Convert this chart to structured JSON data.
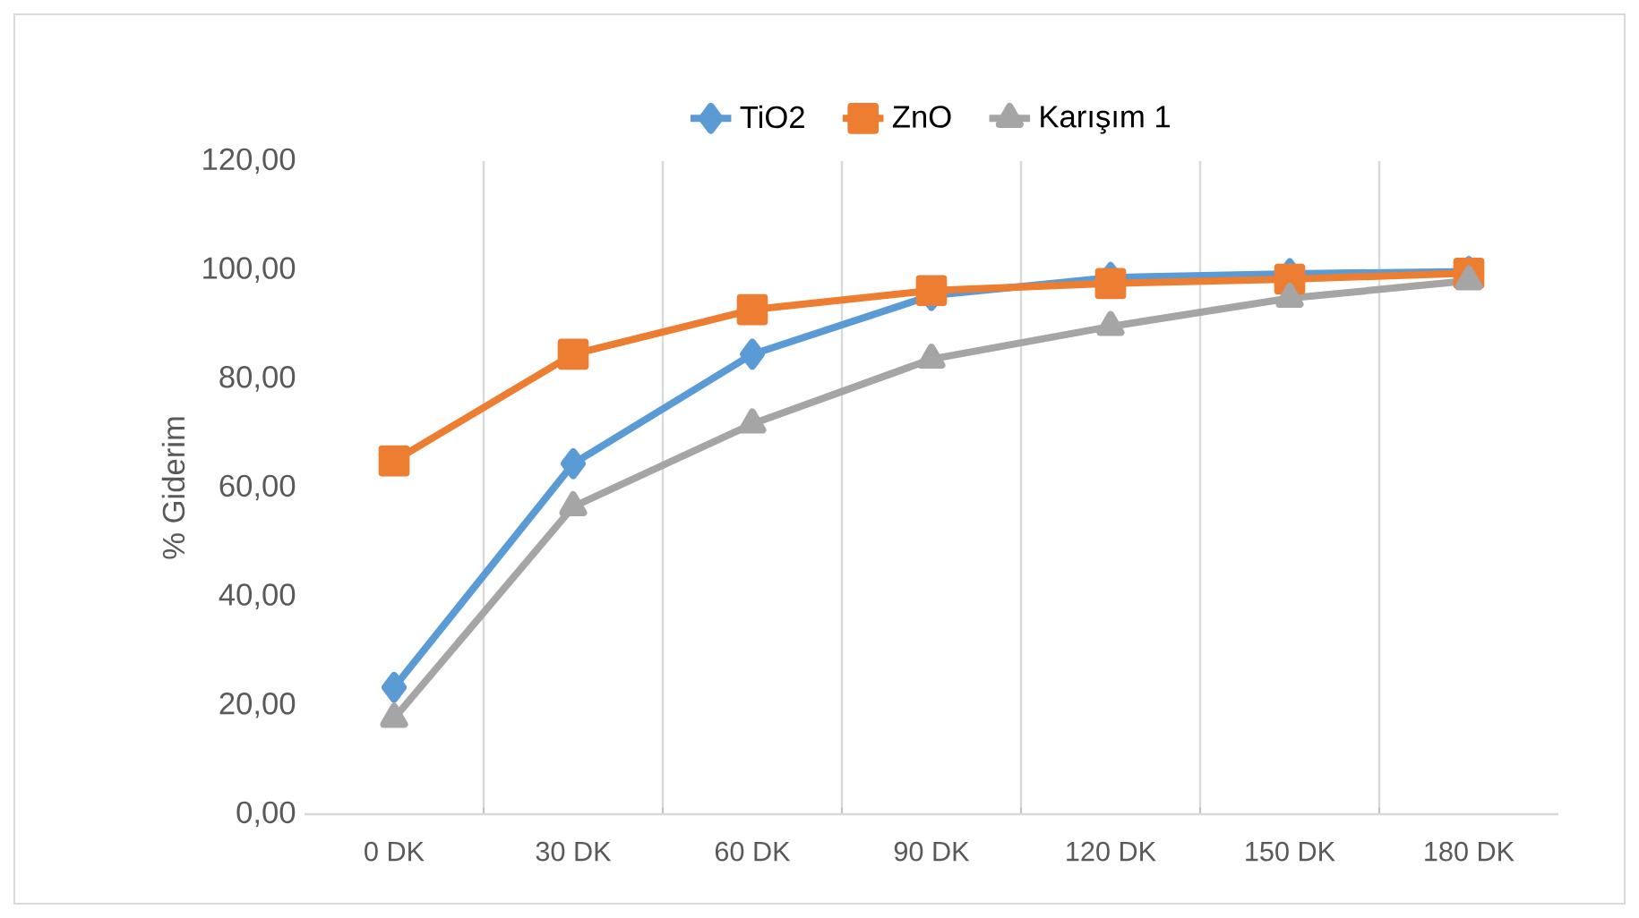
{
  "chart_data": {
    "type": "line",
    "ylabel": "% Giderim",
    "categories": [
      "0 DK",
      "30 DK",
      "60 DK",
      "90 DK",
      "120 DK",
      "150 DK",
      "180 DK"
    ],
    "series": [
      {
        "name": "TiO2",
        "color": "#5b9bd5",
        "marker": "diamond",
        "values": [
          23.3,
          64.4,
          84.5,
          95.3,
          98.6,
          99.3,
          99.7
        ]
      },
      {
        "name": "ZnO",
        "color": "#ed7d31",
        "marker": "square",
        "values": [
          64.9,
          84.5,
          92.7,
          96.2,
          97.5,
          98.3,
          99.4
        ]
      },
      {
        "name": "Karışım 1",
        "color": "#a5a5a5",
        "marker": "triangle",
        "values": [
          17.6,
          56.5,
          71.7,
          83.6,
          89.6,
          94.8,
          98.0
        ]
      }
    ],
    "ylim": [
      0,
      120
    ],
    "yticks": [
      {
        "value": 0,
        "label": "0,00"
      },
      {
        "value": 20,
        "label": "20,00"
      },
      {
        "value": 40,
        "label": "40,00"
      },
      {
        "value": 60,
        "label": "60,00"
      },
      {
        "value": 80,
        "label": "80,00"
      },
      {
        "value": 100,
        "label": "100,00"
      },
      {
        "value": 120,
        "label": "120,00"
      }
    ],
    "grid": "x",
    "legend": "top",
    "line_style": "solid"
  }
}
